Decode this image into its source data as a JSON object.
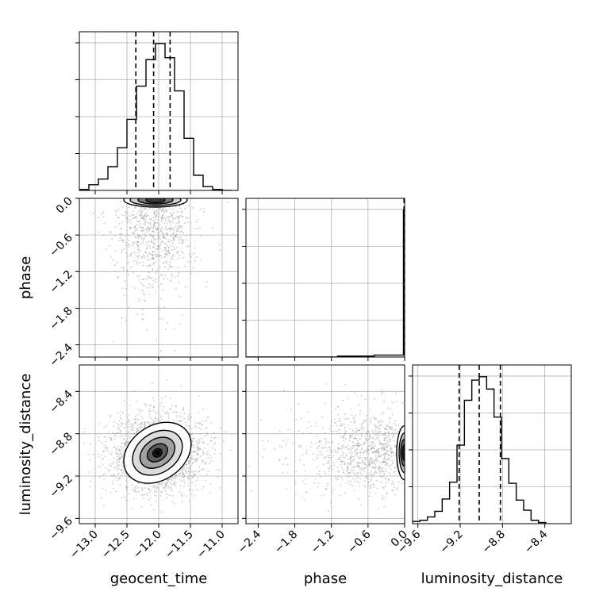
{
  "chart_data": {
    "type": "corner",
    "parameters": [
      "geocent_time",
      "phase",
      "luminosity_distance"
    ],
    "axis_labels": {
      "x": [
        "geocent_time",
        "phase",
        "luminosity_distance"
      ],
      "y": [
        "phase",
        "luminosity_distance"
      ]
    },
    "ranges": {
      "geocent_time": [
        -13.25,
        -10.75
      ],
      "phase": [
        -2.6,
        0.0
      ],
      "luminosity_distance": [
        -9.65,
        -8.15
      ]
    },
    "ticks": {
      "geocent_time": [
        "-13.0",
        "-12.5",
        "-12.0",
        "-11.5",
        "-11.0"
      ],
      "phase": [
        "-2.4",
        "-1.8",
        "-1.2",
        "-0.6",
        "0.0"
      ],
      "luminosity_distance": [
        "-9.6",
        "-9.2",
        "-8.8",
        "-8.4"
      ]
    },
    "quantiles": {
      "geocent_time": [
        -12.36,
        -12.08,
        -11.82
      ],
      "phase": [
        -0.01,
        -0.005,
        0.0
      ],
      "luminosity_distance": [
        -9.21,
        -9.02,
        -8.82
      ]
    },
    "histograms": {
      "geocent_time": {
        "bin_edges": [
          -13.25,
          -13.1,
          -12.95,
          -12.8,
          -12.65,
          -12.5,
          -12.35,
          -12.2,
          -12.05,
          -11.9,
          -11.75,
          -11.6,
          -11.45,
          -11.3,
          -11.15,
          -11.0,
          -10.85
        ],
        "counts": [
          1,
          6,
          12,
          25,
          45,
          75,
          110,
          138,
          155,
          140,
          105,
          55,
          16,
          4,
          1,
          0
        ]
      },
      "phase": {
        "bin_edges": [
          -2.6,
          -2.3,
          -2.0,
          -1.7,
          -1.4,
          -1.1,
          -0.9,
          -0.7,
          -0.5,
          -0.3,
          -0.02,
          0.0
        ],
        "counts": [
          0,
          0,
          0,
          0,
          0,
          1,
          1,
          1,
          2,
          2,
          150
        ]
      },
      "luminosity_distance": {
        "bin_edges": [
          -9.65,
          -9.58,
          -9.51,
          -9.44,
          -9.37,
          -9.3,
          -9.23,
          -9.16,
          -9.09,
          -9.02,
          -8.95,
          -8.88,
          -8.81,
          -8.74,
          -8.67,
          -8.6,
          -8.53,
          -8.46,
          -8.39
        ],
        "counts": [
          2,
          3,
          6,
          11,
          22,
          37,
          70,
          110,
          128,
          131,
          120,
          95,
          58,
          36,
          21,
          12,
          3,
          1
        ]
      }
    },
    "joint_peaks": {
      "geocent_time__phase": {
        "x": -12.05,
        "y": -0.02
      },
      "geocent_time__luminosity_distance": {
        "x": -12.02,
        "y": -8.98
      },
      "phase__luminosity_distance": {
        "x": -0.01,
        "y": -8.98
      }
    },
    "grid": true,
    "colors": {
      "line": "#000000",
      "scatter": "#9e9e9e",
      "grid": "#b0b0b0"
    }
  }
}
